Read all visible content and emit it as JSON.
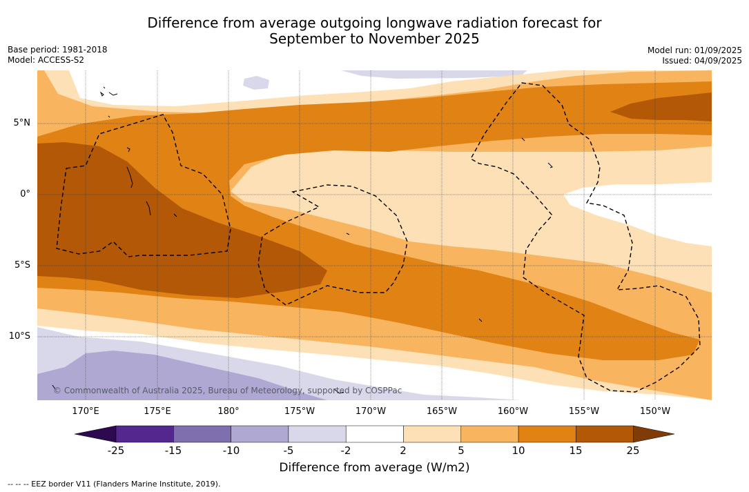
{
  "title": {
    "line1": "Difference from average outgoing longwave radiation forecast for",
    "line2": "September to November 2025"
  },
  "meta_left": {
    "base_period": "Base period: 1981-2018",
    "model": "Model: ACCESS-S2"
  },
  "meta_right": {
    "model_run": "Model run: 01/09/2025",
    "issued": "Issued: 04/09/2025"
  },
  "lat_labels": [
    "5°N",
    "0°",
    "5°S",
    "10°S"
  ],
  "lon_labels": [
    "170°E",
    "175°E",
    "180°",
    "175°W",
    "170°W",
    "165°W",
    "160°W",
    "155°W",
    "150°W"
  ],
  "copyright": "© Commonwealth of Australia 2025, Bureau of Meteorology, supported by COSPPac",
  "colorbar": {
    "ticks": [
      "-25",
      "-15",
      "-10",
      "-5",
      "-2",
      "2",
      "5",
      "10",
      "15",
      "25"
    ],
    "colors": {
      "below": "#2d0a4f",
      "n25_15": "#54278f",
      "n15_10": "#7f6fae",
      "n10_5": "#afa8d2",
      "n5_2": "#d8d8ea",
      "n2_2": "#ffffff",
      "p2_5": "#fde0b5",
      "p5_10": "#f9b45f",
      "p10_15": "#e08214",
      "p15_25": "#b35806",
      "above": "#7f3b08"
    },
    "label": "Difference from average (W/m2)"
  },
  "footnote": "--  --  -- EEZ border V11 (Flanders Marine Institute, 2019)."
}
